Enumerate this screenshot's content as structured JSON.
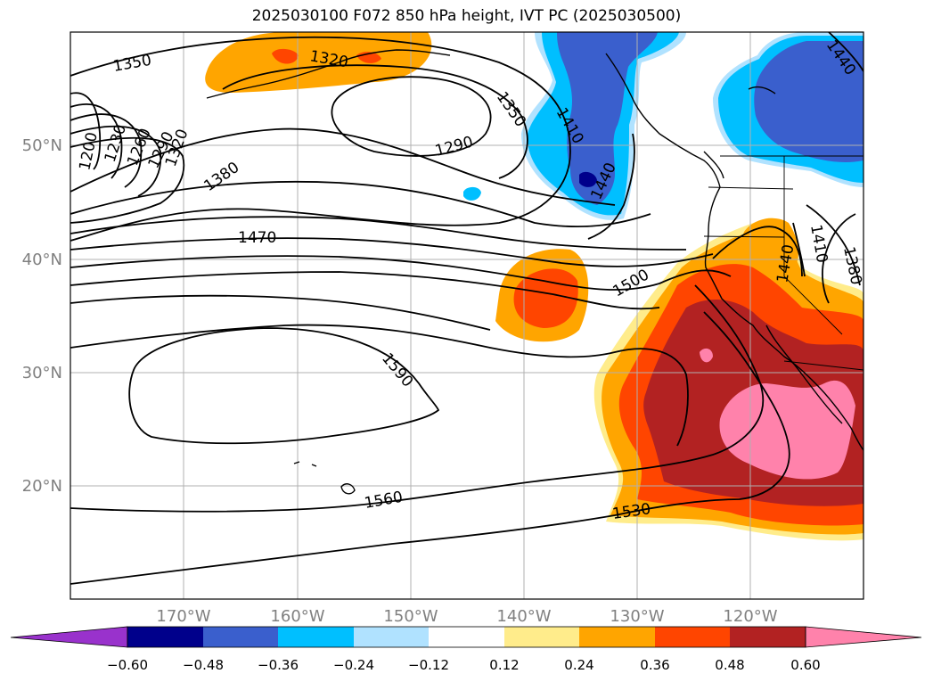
{
  "title": "2025030100 F072 850 hPa height, IVT PC (2025030500)",
  "lat_labels": [
    "50°N",
    "40°N",
    "30°N",
    "20°N"
  ],
  "lon_labels": [
    "170°W",
    "160°W",
    "150°W",
    "140°W",
    "130°W",
    "120°W"
  ],
  "contour_labels": [
    "1350",
    "1320",
    "1200",
    "1230",
    "1260",
    "1290",
    "1320",
    "1380",
    "1470",
    "1290",
    "1350",
    "1410",
    "1440",
    "1500",
    "1590",
    "1560",
    "1530",
    "1440",
    "1410",
    "1380",
    "1440"
  ],
  "colorbar": {
    "ticks": [
      "−0.60",
      "−0.48",
      "−0.36",
      "−0.24",
      "−0.12",
      "0.12",
      "0.24",
      "0.36",
      "0.48",
      "0.60"
    ],
    "colors": [
      "#9932cc",
      "#00008b",
      "#3a5fcd",
      "#00bfff",
      "#b0e2ff",
      "#ffffff",
      "#ffec8b",
      "#ffa500",
      "#ff4500",
      "#b22222",
      "#ff82ab"
    ]
  },
  "colors": {
    "orange": "#ffa500",
    "red_orange": "#ff4500",
    "dark_red": "#b22222",
    "pink": "#ff82ab",
    "light_yellow": "#ffec8b",
    "light_blue": "#b0e2ff",
    "cyan": "#00bfff",
    "blue": "#3a5fcd",
    "navy": "#00008b"
  }
}
